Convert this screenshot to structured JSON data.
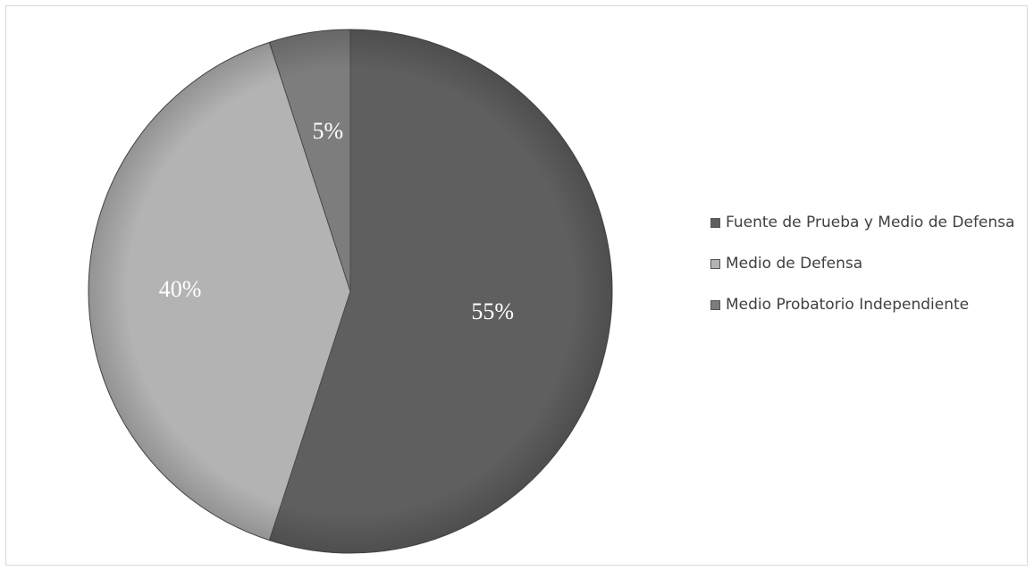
{
  "chart_data": {
    "type": "pie",
    "title": "",
    "categories": [
      "Fuente de Prueba y Medio de Defensa",
      "Medio de Defensa",
      "Medio Probatorio Independiente"
    ],
    "values": [
      55,
      40,
      5
    ],
    "data_labels": [
      "55%",
      "40%",
      "5%"
    ],
    "colors": [
      "#5f5f5f",
      "#b3b3b3",
      "#7d7d7d"
    ],
    "start_angle": "12 o'clock",
    "direction": "clockwise",
    "legend_position": "right"
  }
}
